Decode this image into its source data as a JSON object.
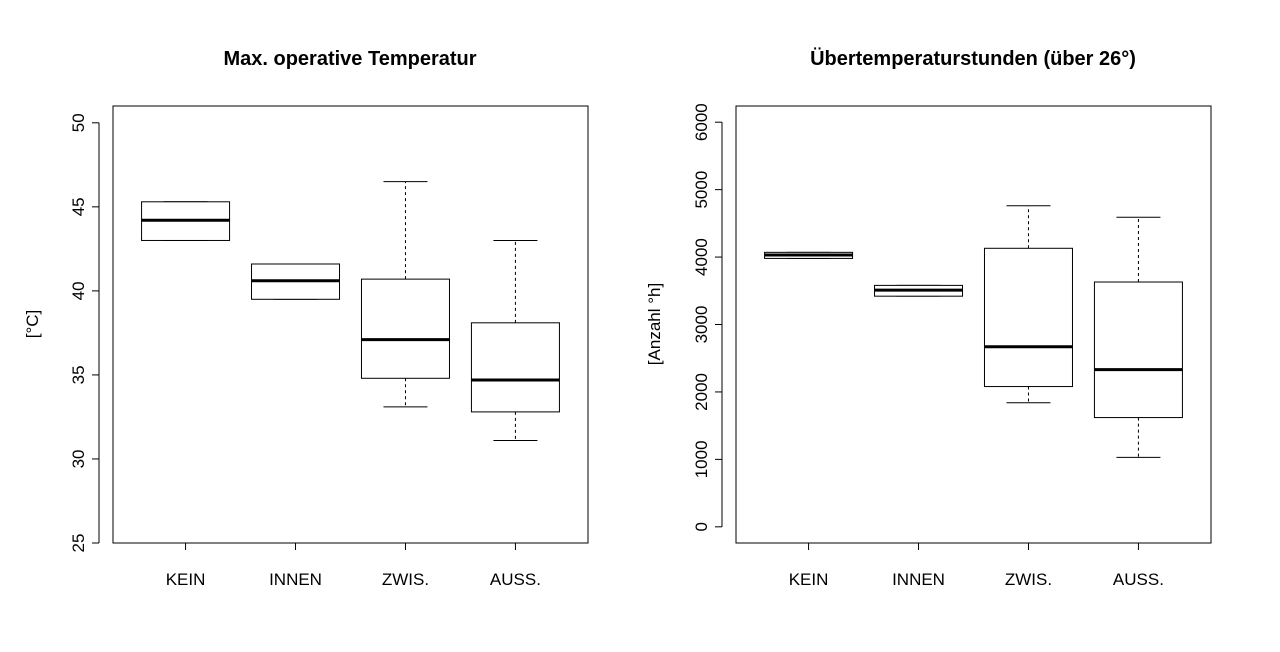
{
  "chart_data": [
    {
      "type": "boxplot",
      "title": "Max. operative Temperatur",
      "ylabel": "[°C]",
      "xlabel": "",
      "ylim": [
        25,
        51
      ],
      "yticks": [
        25,
        30,
        35,
        40,
        45,
        50
      ],
      "categories": [
        "KEIN",
        "INNEN",
        "ZWIS.",
        "AUSS."
      ],
      "boxes": [
        {
          "min": 43.0,
          "q1": 43.0,
          "median": 44.2,
          "q3": 45.3,
          "max": 45.3
        },
        {
          "min": 39.5,
          "q1": 39.5,
          "median": 40.6,
          "q3": 41.6,
          "max": 41.6
        },
        {
          "min": 33.1,
          "q1": 34.8,
          "median": 37.1,
          "q3": 40.7,
          "max": 46.5
        },
        {
          "min": 31.1,
          "q1": 32.8,
          "median": 34.7,
          "q3": 38.1,
          "max": 43.0
        }
      ],
      "grid": false
    },
    {
      "type": "boxplot",
      "title": "Übertemperaturstunden (über 26°)",
      "ylabel": "[Anzahl °h]",
      "xlabel": "",
      "ylim": [
        -240,
        6240
      ],
      "yticks": [
        0,
        1000,
        2000,
        3000,
        4000,
        5000,
        6000
      ],
      "categories": [
        "KEIN",
        "INNEN",
        "ZWIS.",
        "AUSS."
      ],
      "boxes": [
        {
          "min": 3980,
          "q1": 3980,
          "median": 4030,
          "q3": 4070,
          "max": 4070
        },
        {
          "min": 3420,
          "q1": 3420,
          "median": 3510,
          "q3": 3580,
          "max": 3580
        },
        {
          "min": 1840,
          "q1": 2080,
          "median": 2670,
          "q3": 4130,
          "max": 4760
        },
        {
          "min": 1030,
          "q1": 1620,
          "median": 2330,
          "q3": 3630,
          "max": 4590
        }
      ],
      "grid": false
    }
  ]
}
